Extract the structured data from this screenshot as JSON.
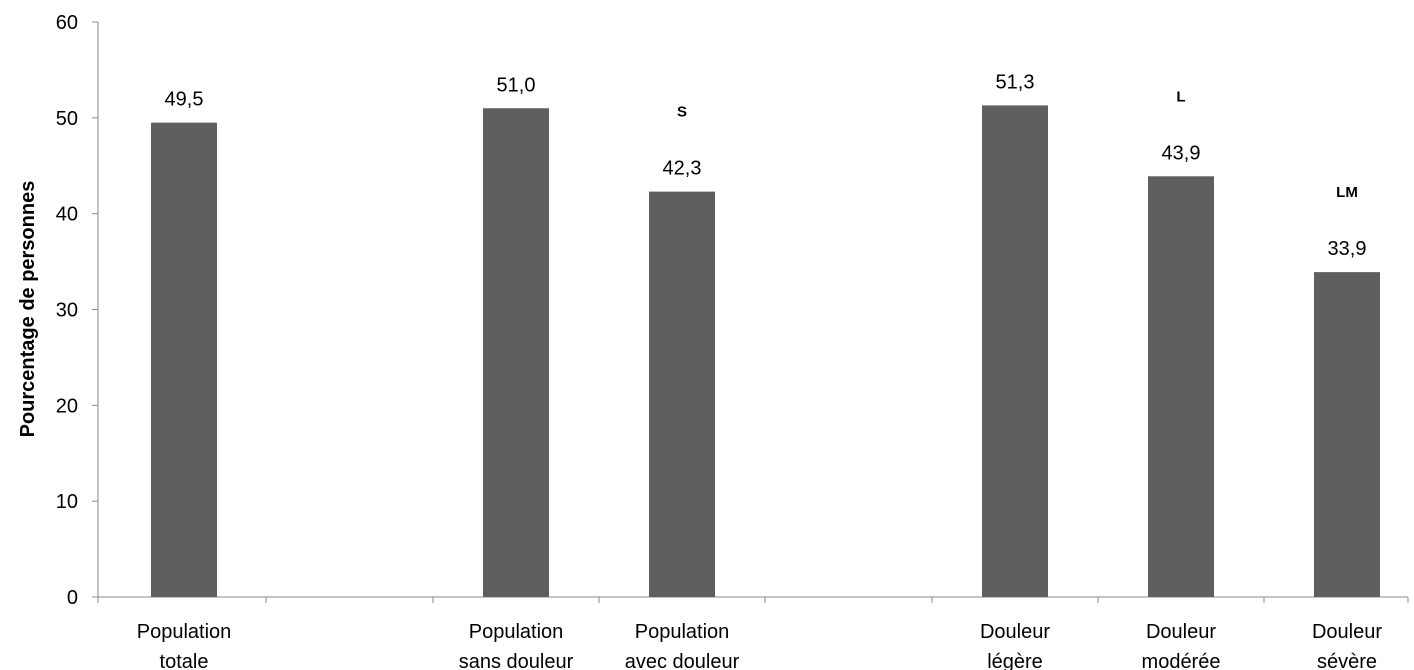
{
  "chart_data": {
    "type": "bar",
    "title": "",
    "xlabel": "",
    "ylabel": "Pourcentage de personnes",
    "ylim": [
      0,
      60
    ],
    "yticks": [
      "0",
      "10",
      "20",
      "30",
      "40",
      "50",
      "60"
    ],
    "grid": false,
    "legend": "none",
    "categories": [
      [
        "Population",
        "totale"
      ],
      [
        "Population",
        "sans douleur"
      ],
      [
        "Population",
        "avec douleur"
      ],
      [
        "Douleur",
        "légère"
      ],
      [
        "Douleur",
        "modérée"
      ],
      [
        "Douleur",
        "sévère"
      ]
    ],
    "values": [
      49.5,
      51.0,
      42.3,
      51.3,
      43.9,
      33.9
    ],
    "value_labels": [
      "49,5",
      "51,0",
      "42,3",
      "51,3",
      "43,9",
      "33,9"
    ],
    "annotations": [
      "",
      "",
      "S",
      "",
      "L",
      "LM"
    ],
    "bar_color": "#5f5f5f"
  }
}
